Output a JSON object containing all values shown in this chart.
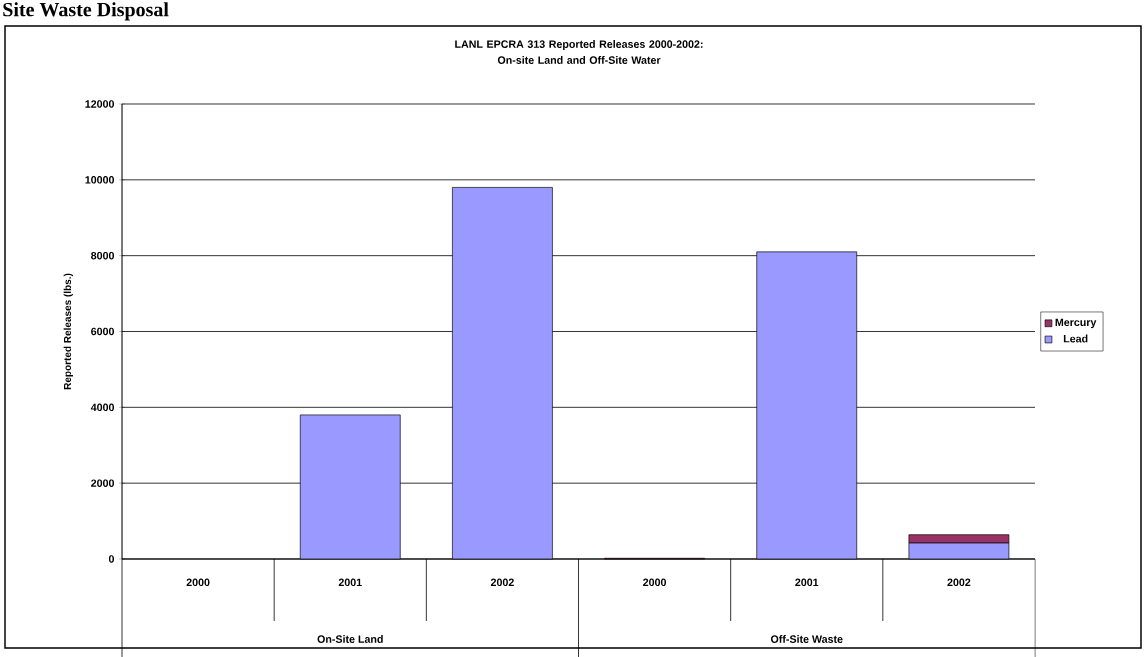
{
  "chart_data": {
    "type": "bar",
    "title": "LANL EPCRA 313 Reported Releases 2000-2002:\nOn-site Land and Off-Site Water",
    "ylabel": "Reported Releases (lbs.)",
    "categories": [
      "2000",
      "2001",
      "2002",
      "2000",
      "2001",
      "2002"
    ],
    "series": [
      {
        "name": "Lead",
        "color": "#9999ff",
        "values": [
          0,
          3800,
          9800,
          0,
          8100,
          420
        ]
      },
      {
        "name": "Mercury",
        "color": "#993366",
        "values": [
          0,
          0,
          0,
          20,
          0,
          220
        ]
      }
    ],
    "stacked": true,
    "ylim": [
      0,
      12000
    ],
    "yticks": [
      0,
      2000,
      4000,
      6000,
      8000,
      10000,
      12000
    ],
    "grid": "y",
    "legend": "right",
    "annotations": [
      "Site Waste Disposal",
      "On-Site Land",
      "Off-Site Waste"
    ]
  }
}
